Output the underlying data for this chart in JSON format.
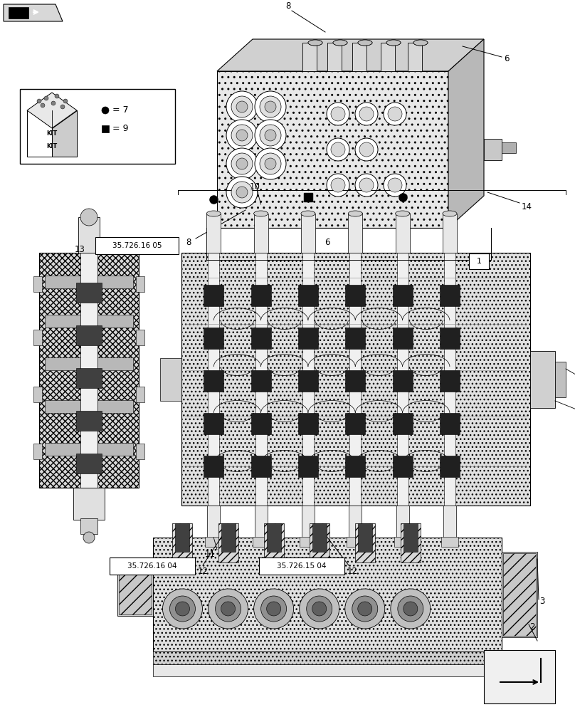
{
  "bg_color": "#ffffff",
  "lc": "#000000",
  "gray1": "#c8c8c8",
  "gray2": "#e0e0e0",
  "gray3": "#a0a0a0",
  "dark": "#404040",
  "label_35_726_16_05": "35.726.16 05",
  "label_35_726_16_04": "35.726.16 04",
  "label_35_726_15_04": "35.726.15 04",
  "fs_callout": 8.5,
  "fs_label": 7.5,
  "fs_refbox": 7.0
}
